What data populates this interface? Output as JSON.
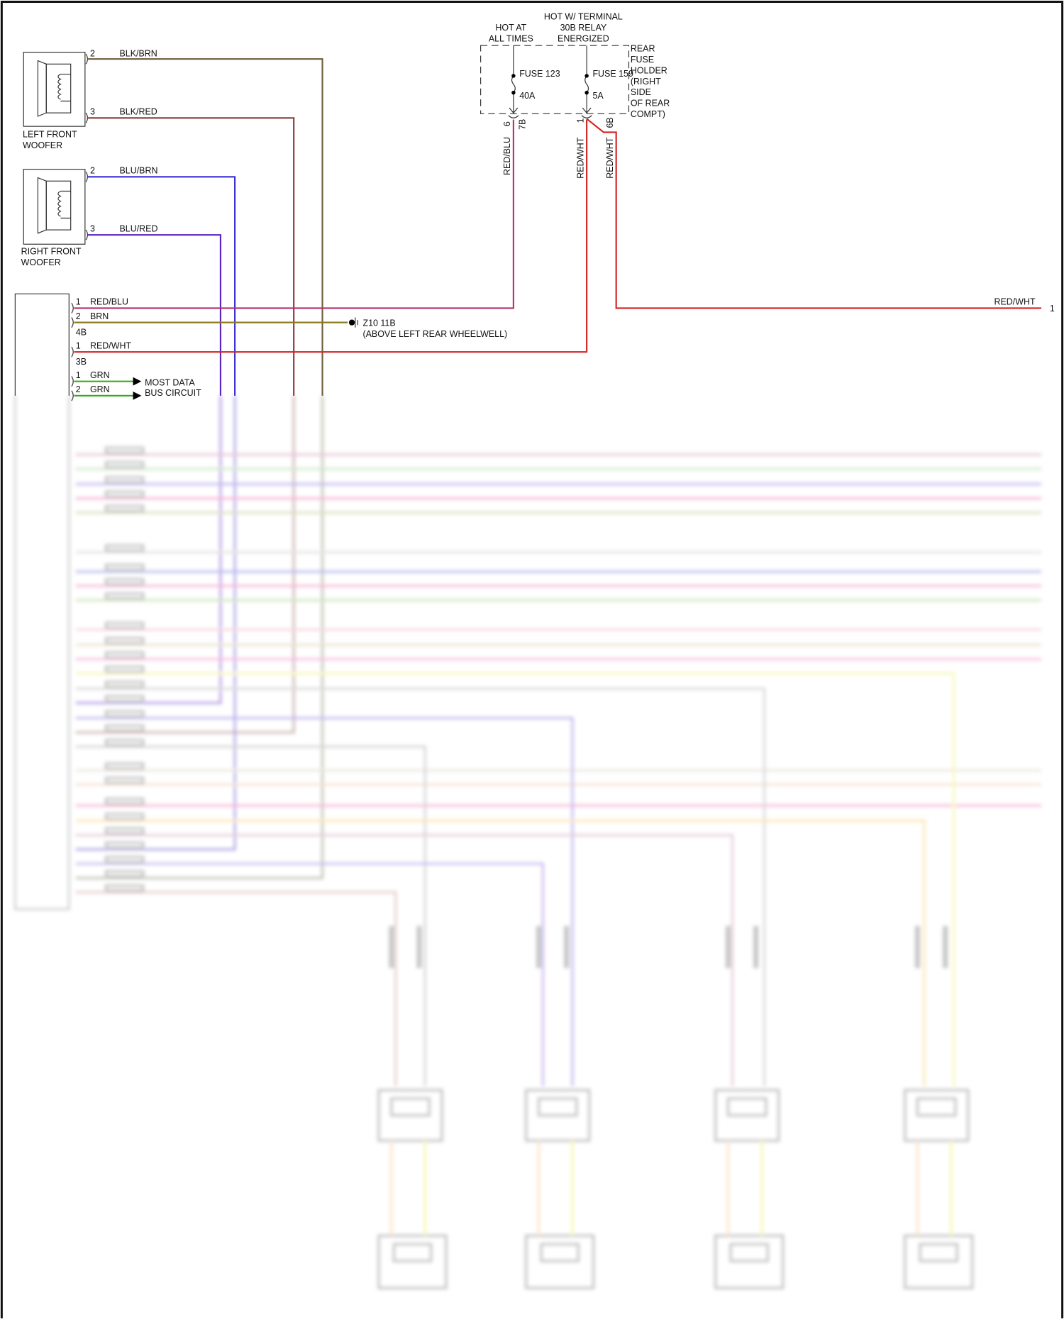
{
  "colors": {
    "blk_brn": "#6e5c3a",
    "blk_red": "#8c3b3b",
    "blu_brn": "#3a2fd0",
    "blu_red": "#5a22c0",
    "red_blu": "#b4306e",
    "brn": "#8c7a1c",
    "red_wht": "#d42222",
    "grn": "#38aa22"
  },
  "left_woofer": {
    "label_line1": "LEFT FRONT",
    "label_line2": "WOOFER",
    "pin2": "2",
    "pin2_wire": "BLK/BRN",
    "pin3": "3",
    "pin3_wire": "BLK/RED",
    "icon": "speaker-icon"
  },
  "right_woofer": {
    "label_line1": "RIGHT FRONT",
    "label_line2": "WOOFER",
    "pin2": "2",
    "pin2_wire": "BLU/BRN",
    "pin3": "3",
    "pin3_wire": "BLU/RED",
    "icon": "speaker-icon"
  },
  "module": {
    "c4b_pin1": "1",
    "c4b_pin1_wire": "RED/BLU",
    "c4b_pin2": "2",
    "c4b_pin2_wire": "BRN",
    "c4b_name": "4B",
    "c3b_pin1": "1",
    "c3b_pin1_wire": "RED/WHT",
    "c3b_name": "3B",
    "most_pin1": "1",
    "most_pin1_wire": "GRN",
    "most_pin2": "2",
    "most_pin2_wire": "GRN",
    "most_line1": "MOST DATA",
    "most_line2": "BUS CIRCUIT"
  },
  "ground": {
    "id": "Z10 11B",
    "location": "(ABOVE LEFT REAR WHEELWELL)"
  },
  "fuse_holder": {
    "hot_at_line1": "HOT AT",
    "hot_at_line2": "ALL TIMES",
    "hot_relay_line1": "HOT W/ TERMINAL",
    "hot_relay_line2": "30B RELAY",
    "hot_relay_line3": "ENERGIZED",
    "label_lines": [
      "REAR",
      "FUSE",
      "HOLDER",
      "(RIGHT",
      "SIDE",
      "OF REAR",
      "COMPT)"
    ],
    "fuse_a_name": "FUSE 123",
    "fuse_a_rating": "40A",
    "fuse_b_name": "FUSE 159",
    "fuse_b_rating": "5A",
    "out_a_pin": "6",
    "out_a_connector": "7B",
    "out_a_wire": "RED/BLU",
    "out_b_pin": "1",
    "out_b_wire": "RED/WHT",
    "out_b2_connector": "6B",
    "out_b2_wire": "RED/WHT"
  },
  "right_edge": {
    "wire": "RED/WHT",
    "pin": "1"
  }
}
